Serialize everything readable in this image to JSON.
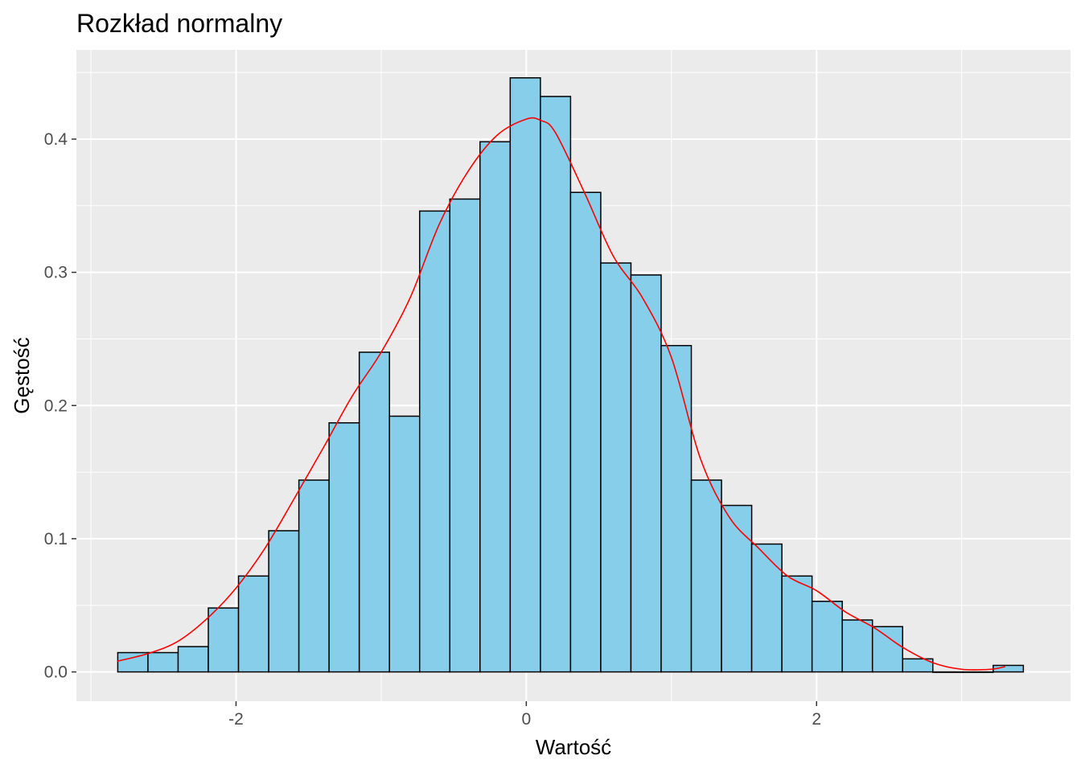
{
  "chart_data": {
    "type": "bar",
    "subtype": "histogram with density curve",
    "title": "Rozkład normalny",
    "xlabel": "Wartość",
    "ylabel": "Gęstość",
    "xlim": [
      -3.1,
      3.75
    ],
    "ylim": [
      -0.022,
      0.467
    ],
    "x_ticks": [
      -2,
      0,
      2
    ],
    "x_tick_labels": [
      "-2",
      "0",
      "2"
    ],
    "y_ticks": [
      0.0,
      0.1,
      0.2,
      0.3,
      0.4
    ],
    "y_tick_labels": [
      "0.0",
      "0.1",
      "0.2",
      "0.3",
      "0.4"
    ],
    "grid": true,
    "legend": "none",
    "bins": [
      {
        "x0": -2.815,
        "x1": -2.607,
        "density": 0.0145
      },
      {
        "x0": -2.607,
        "x1": -2.399,
        "density": 0.0145
      },
      {
        "x0": -2.399,
        "x1": -2.191,
        "density": 0.019
      },
      {
        "x0": -2.191,
        "x1": -1.983,
        "density": 0.048
      },
      {
        "x0": -1.983,
        "x1": -1.775,
        "density": 0.072
      },
      {
        "x0": -1.775,
        "x1": -1.567,
        "density": 0.106
      },
      {
        "x0": -1.567,
        "x1": -1.359,
        "density": 0.144
      },
      {
        "x0": -1.359,
        "x1": -1.151,
        "density": 0.187
      },
      {
        "x0": -1.151,
        "x1": -0.943,
        "density": 0.24
      },
      {
        "x0": -0.943,
        "x1": -0.735,
        "density": 0.192
      },
      {
        "x0": -0.735,
        "x1": -0.527,
        "density": 0.346
      },
      {
        "x0": -0.527,
        "x1": -0.319,
        "density": 0.355
      },
      {
        "x0": -0.319,
        "x1": -0.111,
        "density": 0.398
      },
      {
        "x0": -0.111,
        "x1": 0.097,
        "density": 0.446
      },
      {
        "x0": 0.097,
        "x1": 0.305,
        "density": 0.432
      },
      {
        "x0": 0.305,
        "x1": 0.513,
        "density": 0.36
      },
      {
        "x0": 0.513,
        "x1": 0.721,
        "density": 0.307
      },
      {
        "x0": 0.721,
        "x1": 0.929,
        "density": 0.298
      },
      {
        "x0": 0.929,
        "x1": 1.137,
        "density": 0.245
      },
      {
        "x0": 1.137,
        "x1": 1.345,
        "density": 0.144
      },
      {
        "x0": 1.345,
        "x1": 1.553,
        "density": 0.125
      },
      {
        "x0": 1.553,
        "x1": 1.761,
        "density": 0.096
      },
      {
        "x0": 1.761,
        "x1": 1.969,
        "density": 0.072
      },
      {
        "x0": 1.969,
        "x1": 2.177,
        "density": 0.053
      },
      {
        "x0": 2.177,
        "x1": 2.385,
        "density": 0.039
      },
      {
        "x0": 2.385,
        "x1": 2.593,
        "density": 0.034
      },
      {
        "x0": 2.593,
        "x1": 2.801,
        "density": 0.0098
      },
      {
        "x0": 2.801,
        "x1": 3.009,
        "density": 0.0
      },
      {
        "x0": 3.009,
        "x1": 3.217,
        "density": 0.0
      },
      {
        "x0": 3.217,
        "x1": 3.425,
        "density": 0.0049
      }
    ],
    "density_curve": {
      "x": [
        -2.82,
        -2.6,
        -2.4,
        -2.2,
        -2.0,
        -1.8,
        -1.6,
        -1.4,
        -1.2,
        -1.0,
        -0.8,
        -0.6,
        -0.4,
        -0.2,
        0.0,
        0.1,
        0.2,
        0.4,
        0.6,
        0.8,
        1.0,
        1.2,
        1.4,
        1.6,
        1.8,
        2.0,
        2.2,
        2.4,
        2.6,
        2.8,
        3.0,
        3.2,
        3.3
      ],
      "y": [
        0.008,
        0.014,
        0.023,
        0.04,
        0.063,
        0.093,
        0.13,
        0.168,
        0.207,
        0.24,
        0.281,
        0.336,
        0.376,
        0.403,
        0.415,
        0.414,
        0.405,
        0.36,
        0.312,
        0.281,
        0.236,
        0.16,
        0.116,
        0.093,
        0.072,
        0.061,
        0.045,
        0.033,
        0.018,
        0.007,
        0.002,
        0.002,
        0.004
      ],
      "color": "#ff0000"
    },
    "colors": {
      "bar_fill": "#87ceeb",
      "bar_stroke": "#000000",
      "panel_bg": "#ebebeb",
      "grid": "#ffffff",
      "curve": "#ff0000"
    }
  }
}
